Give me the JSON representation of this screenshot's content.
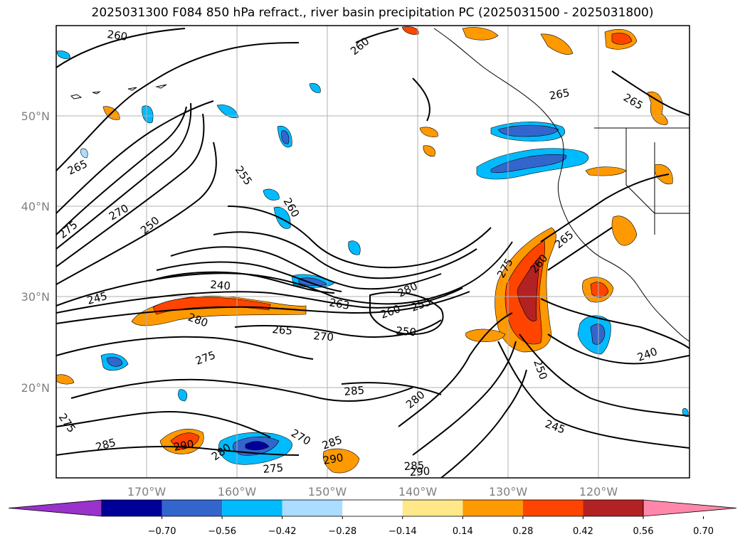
{
  "title": "2025031300 F084 850 hPa refract., river basin precipitation PC (2025031500 - 2025031800)",
  "colors": {
    "purple": "#9933cc",
    "navy": "#000099",
    "royalblue": "#3366cc",
    "cyan": "#00bbff",
    "lightblue": "#aaddff",
    "white": "#ffffff",
    "lightyellow": "#ffe88a",
    "orange": "#ff9900",
    "redorange": "#ff4400",
    "brickred": "#b22222",
    "pink": "#ff88aa",
    "grid": "#b0b0b0",
    "contour": "#000000",
    "tick_text": "#808080"
  },
  "axes": {
    "lon_ticks": [
      "170°W",
      "160°W",
      "150°W",
      "140°W",
      "130°W",
      "120°W"
    ],
    "lat_ticks": [
      "50°N",
      "40°N",
      "30°N",
      "20°N"
    ]
  },
  "contour_labels": [
    "260",
    "265",
    "260",
    "265",
    "265",
    "255",
    "260",
    "270",
    "275",
    "250",
    "245",
    "240",
    "280",
    "263",
    "265",
    "270",
    "260",
    "255",
    "250",
    "280",
    "275",
    "285",
    "280",
    "275",
    "260",
    "265",
    "250",
    "240",
    "245",
    "285",
    "290",
    "280",
    "270",
    "275",
    "285",
    "290",
    "285",
    "290",
    "275"
  ],
  "colorbar": {
    "tick_labels": [
      "−0.70",
      "−0.56",
      "−0.42",
      "−0.28",
      "−0.14",
      "0.14",
      "0.28",
      "0.42",
      "0.56",
      "0.70"
    ],
    "segments": [
      "purple",
      "navy",
      "royalblue",
      "cyan",
      "lightblue",
      "white",
      "lightyellow",
      "orange",
      "redorange",
      "brickred",
      "pink"
    ]
  }
}
